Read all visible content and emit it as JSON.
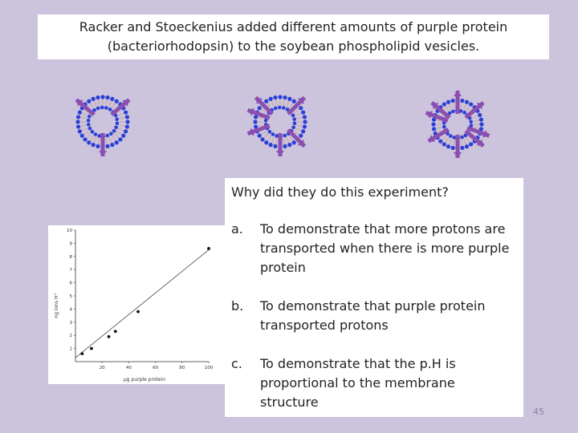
{
  "title": {
    "line1": "Racker and Stoeckenius added different amounts of purple protein",
    "line2": "(bacteriorhodopsin) to the soybean phospholipid vesicles."
  },
  "question": "Why did they do this experiment?",
  "options": [
    {
      "letter": "a.",
      "lines": [
        "To demonstrate that more protons are",
        "transported when there is more purple",
        "protein"
      ]
    },
    {
      "letter": "b.",
      "lines": [
        "To demonstrate that purple protein",
        "transported protons"
      ]
    },
    {
      "letter": "c.",
      "lines": [
        "To demonstrate that the p.H is",
        "proportional to the membrane",
        "structure"
      ]
    }
  ],
  "slide_number": "45",
  "colors": {
    "background": "#ccc3dc",
    "lipid_head": "#2b3fd6",
    "protein": "#8a4fb0"
  },
  "chart_data": {
    "type": "scatter",
    "title": "",
    "xlabel": "µg purple protein",
    "ylabel": "ng ions H⁺",
    "xlim": [
      0,
      100
    ],
    "ylim": [
      0,
      10
    ],
    "x_ticks": [
      "20",
      "40",
      "60",
      "80",
      "100"
    ],
    "y_ticks": [
      "1",
      "2",
      "3",
      "4",
      "5",
      "6",
      "7",
      "8",
      "9",
      "10"
    ],
    "points": [
      {
        "x": 5,
        "y": 0.6
      },
      {
        "x": 12,
        "y": 1.0
      },
      {
        "x": 25,
        "y": 1.9
      },
      {
        "x": 30,
        "y": 2.3
      },
      {
        "x": 47,
        "y": 3.8
      },
      {
        "x": 100,
        "y": 8.6
      }
    ],
    "trend_line": {
      "x": [
        0,
        100
      ],
      "y": [
        0.3,
        8.5
      ]
    }
  }
}
